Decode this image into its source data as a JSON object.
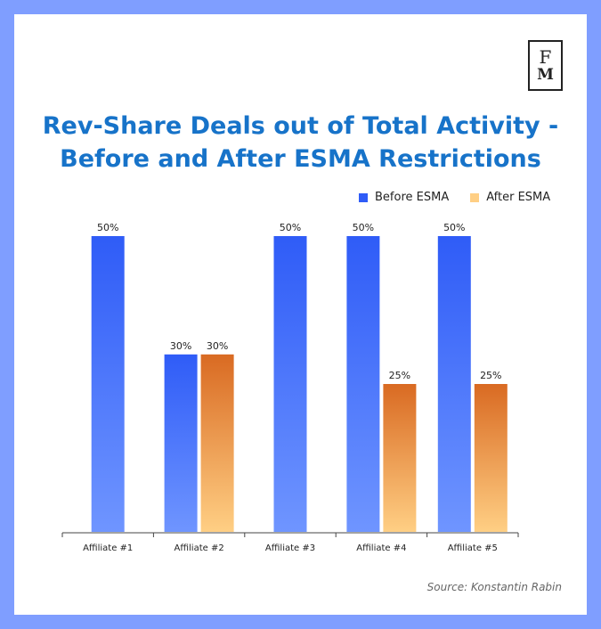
{
  "logo": {
    "top": "F",
    "bottom": "M"
  },
  "title_line1": "Rev-Share Deals out of Total Activity -",
  "title_line2": "Before and After ESMA Restrictions",
  "source": "Source: Konstantin Rabin",
  "colors": {
    "frame": "#7f9eff",
    "before_top": "#2f5cf7",
    "before_bottom": "#6f95ff",
    "after_top": "#d96a22",
    "after_bottom": "#ffcf84",
    "title": "#1773c9"
  },
  "chart_data": {
    "type": "bar",
    "title": "Rev-Share Deals out of Total Activity - Before and After ESMA Restrictions",
    "categories": [
      "Affiliate #1",
      "Affiliate #2",
      "Affiliate #3",
      "Affiliate #4",
      "Affiliate #5"
    ],
    "series": [
      {
        "name": "Before ESMA",
        "values": [
          50,
          30,
          50,
          50,
          50
        ],
        "labels": [
          "50%",
          "30%",
          "50%",
          "50%",
          "50%"
        ]
      },
      {
        "name": "After ESMA",
        "values": [
          null,
          30,
          null,
          25,
          25
        ],
        "labels": [
          null,
          "30%",
          null,
          "25%",
          "25%"
        ]
      }
    ],
    "ylim": [
      0,
      50
    ],
    "grid": false,
    "legend": "top-right",
    "xlabel": "",
    "ylabel": ""
  }
}
